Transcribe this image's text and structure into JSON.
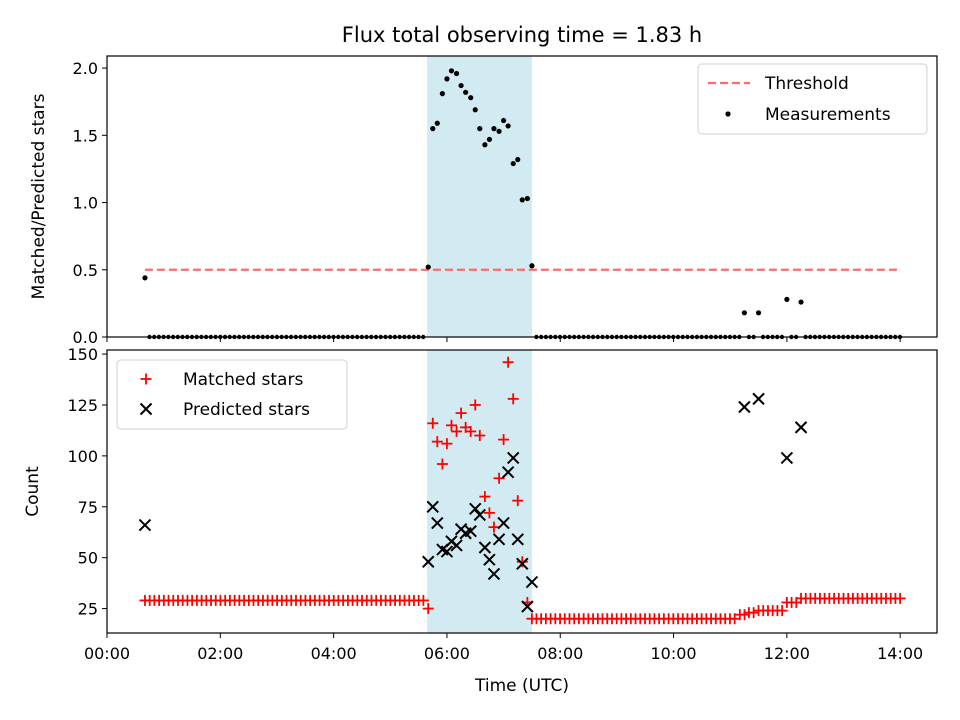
{
  "chart_data": [
    {
      "type": "scatter",
      "panel": "top",
      "title": "Flux total observing time = 1.83 h",
      "xlabel": "",
      "ylabel": "Matched/Predicted stars",
      "xlim": [
        0,
        14.65
      ],
      "ylim": [
        0,
        2.09
      ],
      "yticks": [
        0,
        0.5,
        1.0,
        1.5,
        2.0
      ],
      "ytick_labels": [
        "0.0",
        "0.5",
        "1.0",
        "1.5",
        "2.0"
      ],
      "grid": false,
      "legend_position": "top-right",
      "shaded_interval": {
        "start": 5.65,
        "end": 7.5,
        "color": "#add8e6"
      },
      "threshold": {
        "name": "Threshold",
        "value": 0.5,
        "x": [
          0.67,
          14.0
        ],
        "color": "#ff6b6b"
      },
      "measurements_name": "Measurements",
      "measurements_color": "#000000",
      "measurements": {
        "x": [
          0.67,
          5.67,
          5.75,
          5.83,
          5.92,
          6.0,
          6.08,
          6.17,
          6.25,
          6.33,
          6.42,
          6.5,
          6.58,
          6.67,
          6.75,
          6.83,
          6.92,
          7.0,
          7.08,
          7.17,
          7.25,
          7.33,
          7.42,
          7.5,
          11.25,
          11.5,
          12.0,
          12.25
        ],
        "y": [
          0.44,
          0.52,
          1.55,
          1.59,
          1.81,
          1.92,
          1.98,
          1.96,
          1.87,
          1.82,
          1.78,
          1.69,
          1.55,
          1.43,
          1.47,
          1.55,
          1.53,
          1.61,
          1.57,
          1.29,
          1.32,
          1.02,
          1.03,
          0.53,
          0.18,
          0.18,
          0.28,
          0.26
        ]
      },
      "zero_runs": [
        {
          "from": 0.75,
          "to": 5.58,
          "step": 0.0833
        },
        {
          "from": 7.58,
          "to": 11.17,
          "step": 0.0833
        },
        {
          "from": 11.33,
          "to": 11.42,
          "step": 0.0833
        },
        {
          "from": 11.58,
          "to": 11.92,
          "step": 0.0833
        },
        {
          "from": 12.08,
          "to": 12.17,
          "step": 0.0833
        },
        {
          "from": 12.33,
          "to": 14.0,
          "step": 0.0833
        }
      ]
    },
    {
      "type": "scatter",
      "panel": "bottom",
      "title": "",
      "xlabel": "Time (UTC)",
      "ylabel": "Count",
      "xlim": [
        0,
        14.65
      ],
      "ylim": [
        13,
        152
      ],
      "xticks": [
        0,
        2,
        4,
        6,
        8,
        10,
        12,
        14
      ],
      "xtick_labels": [
        "00:00",
        "02:00",
        "04:00",
        "06:00",
        "08:00",
        "10:00",
        "12:00",
        "14:00"
      ],
      "yticks": [
        25,
        50,
        75,
        100,
        125,
        150
      ],
      "ytick_labels": [
        "25",
        "50",
        "75",
        "100",
        "125",
        "150"
      ],
      "grid": false,
      "legend_position": "top-left",
      "shaded_interval": {
        "start": 5.65,
        "end": 7.5,
        "color": "#add8e6"
      },
      "series": [
        {
          "name": "Matched stars",
          "marker": "plus",
          "color": "#ff0000",
          "runs": [
            {
              "from": 0.67,
              "to": 5.58,
              "step": 0.0833,
              "value": 29
            },
            {
              "from": 7.58,
              "to": 11.08,
              "step": 0.0833,
              "value": 20
            },
            {
              "from": 11.17,
              "to": 11.25,
              "step": 0.0833,
              "value": 22
            },
            {
              "from": 11.33,
              "to": 11.42,
              "step": 0.0833,
              "value": 23
            },
            {
              "from": 11.5,
              "to": 11.92,
              "step": 0.0833,
              "value": 24
            },
            {
              "from": 12.0,
              "to": 12.17,
              "step": 0.0833,
              "value": 28
            },
            {
              "from": 12.25,
              "to": 14.0,
              "step": 0.0833,
              "value": 30
            }
          ],
          "x": [
            5.67,
            5.75,
            5.83,
            5.92,
            6.0,
            6.08,
            6.17,
            6.25,
            6.33,
            6.42,
            6.5,
            6.58,
            6.67,
            6.75,
            6.83,
            6.92,
            7.0,
            7.08,
            7.17,
            7.25,
            7.33,
            7.42,
            7.5
          ],
          "y": [
            25,
            116,
            107,
            96,
            106,
            115,
            112,
            121,
            114,
            112,
            125,
            110,
            80,
            72,
            65,
            89,
            108,
            146,
            128,
            78,
            48,
            28,
            20
          ]
        },
        {
          "name": "Predicted stars",
          "marker": "x",
          "color": "#000000",
          "x": [
            0.67,
            5.67,
            5.75,
            5.83,
            5.92,
            6.0,
            6.08,
            6.17,
            6.25,
            6.33,
            6.42,
            6.5,
            6.58,
            6.67,
            6.75,
            6.83,
            6.92,
            7.0,
            7.08,
            7.17,
            7.25,
            7.33,
            7.42,
            7.5,
            11.25,
            11.5,
            12.0,
            12.25
          ],
          "y": [
            66,
            48,
            75,
            67,
            54,
            53,
            58,
            56,
            64,
            62,
            63,
            74,
            71,
            55,
            49,
            42,
            59,
            67,
            92,
            99,
            59,
            47,
            26,
            38,
            124,
            128,
            99,
            114
          ]
        }
      ]
    }
  ]
}
